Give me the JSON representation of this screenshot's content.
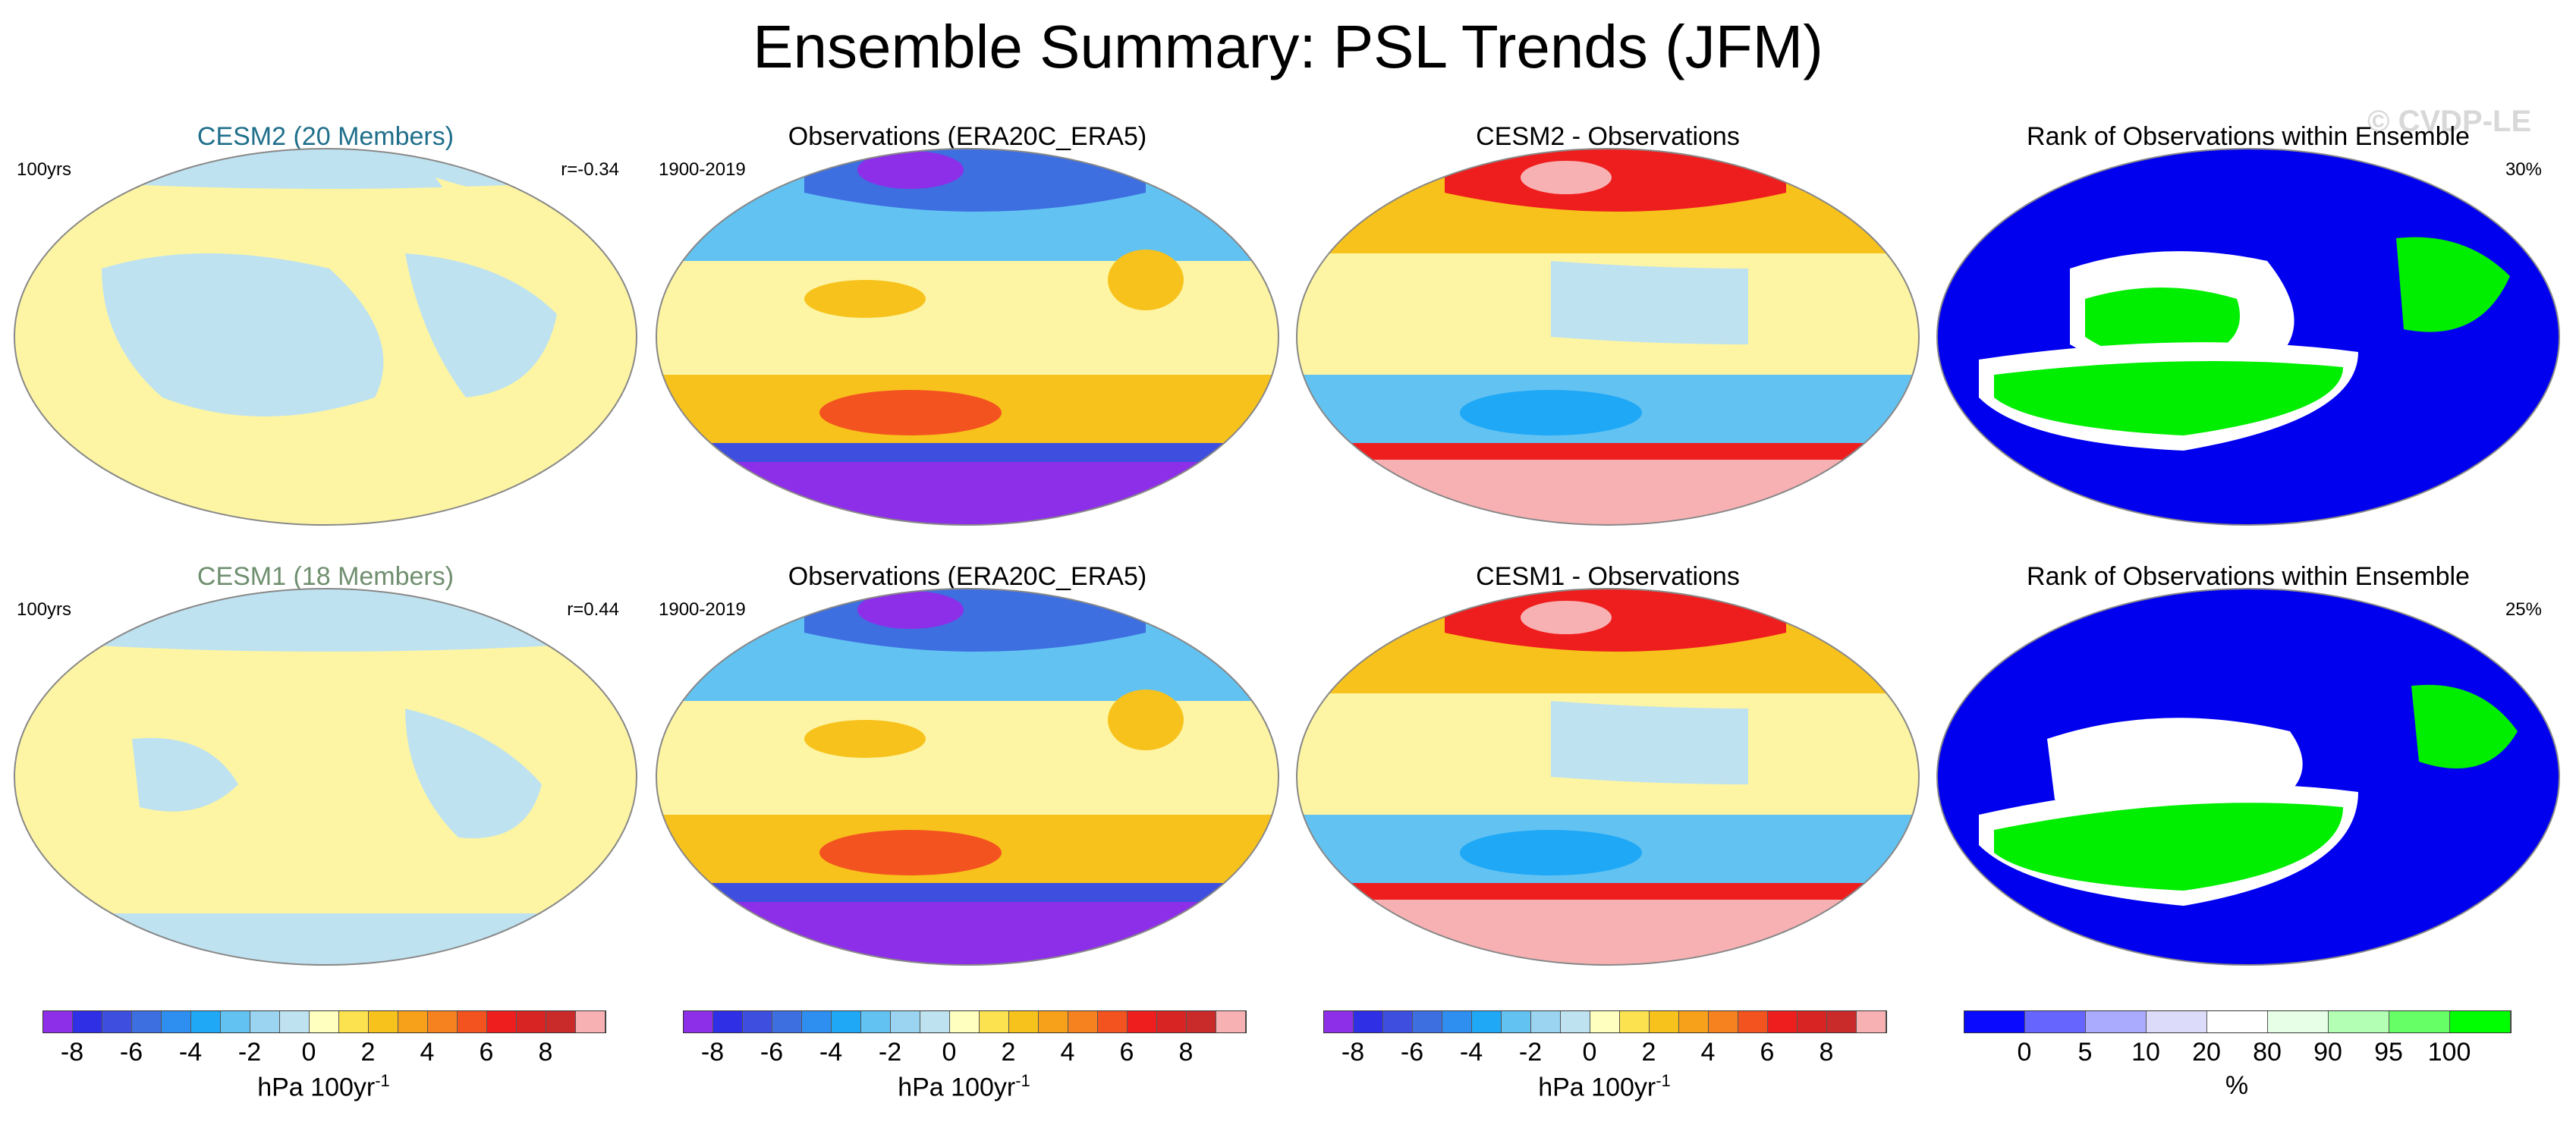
{
  "main_title": "Ensemble Summary: PSL Trends (JFM)",
  "watermark": "© CVDP-LE",
  "rows": [
    {
      "model_title": "CESM2 (20 Members)",
      "model_title_color": "#1f6f8b",
      "model_left": "100yrs",
      "model_corr": "r=-0.34",
      "obs_title": "Observations (ERA20C_ERA5)",
      "obs_left": "1900-2019",
      "diff_title": "CESM2 - Observations",
      "rank_title": "Rank of Observations within Ensemble",
      "rank_pct": "30%"
    },
    {
      "model_title": "CESM1 (18 Members)",
      "model_title_color": "#6f8f6f",
      "model_left": "100yrs",
      "model_corr": "r=0.44",
      "obs_title": "Observations (ERA20C_ERA5)",
      "obs_left": "1900-2019",
      "diff_title": "CESM1 - Observations",
      "rank_title": "Rank of Observations within Ensemble",
      "rank_pct": "25%"
    }
  ],
  "psl_colorbar": {
    "colors": [
      "#8d2ee8",
      "#2f2fe6",
      "#3e4fe0",
      "#3d6fe0",
      "#2f8ff0",
      "#1fa8f6",
      "#62c2f2",
      "#9ad4f0",
      "#bfe2f0",
      "#ffffc0",
      "#fde24f",
      "#f8c21c",
      "#f7a11a",
      "#f5821f",
      "#f3541f",
      "#ef1e1e",
      "#d92424",
      "#c92b2b",
      "#f8b1b3"
    ],
    "ticks": [
      "-8",
      "-6",
      "-4",
      "-2",
      "0",
      "2",
      "4",
      "6",
      "8"
    ],
    "unit": "hPa 100yr",
    "unit_exp": "-1"
  },
  "rank_colorbar": {
    "colors": [
      "#0a0aff",
      "#6666ff",
      "#aaaaff",
      "#dcdcfa",
      "#ffffff",
      "#e6ffe6",
      "#b3ffb3",
      "#66ff66",
      "#00ff00"
    ],
    "ticks": [
      "0",
      "5",
      "10",
      "20",
      "80",
      "90",
      "95",
      "100"
    ],
    "unit": "%"
  },
  "map_colors": {
    "neutral_yellow": "#fdf5a3",
    "neutral_blue": "#bfe2f0",
    "rank_blue": "#0000ee",
    "rank_green": "#00ee00",
    "rank_white": "#ffffff",
    "coast": "#888888"
  }
}
